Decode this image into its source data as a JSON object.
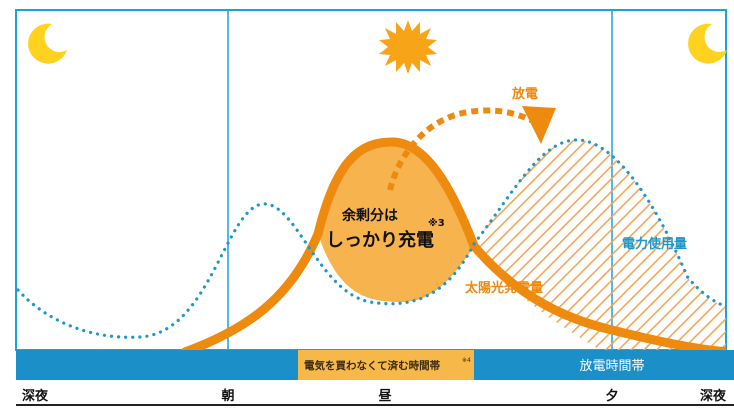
{
  "colors": {
    "frame": "#1aa3d6",
    "band": "#1a8fc8",
    "solar_line": "#ee8a0e",
    "surplus_fill": "#f6b34e",
    "usage_dots": "#1f97c9",
    "hatch": "#f2a65a",
    "sun": "#f7a418",
    "moon": "#ffd21f",
    "discharge_label": "#ee8a0e",
    "usage_label": "#1f97c9",
    "highlight_box": "#f7b84a"
  },
  "icons": {
    "moon_left": "moon-icon",
    "sun": "sun-icon",
    "moon_right": "moon-icon"
  },
  "labels": {
    "discharge": "放電",
    "surplus_line1": "余剰分は",
    "surplus_line2": "しっかり充電",
    "note3": "※3",
    "solar": "太陽光発電量",
    "usage": "電力使用量",
    "no_buy_band": "電気を買わなくて済む時間帯",
    "note4": "※4",
    "discharge_band": "放電時間帯"
  },
  "time_axis": [
    "深夜",
    "朝",
    "昼",
    "夕",
    "深夜"
  ]
}
